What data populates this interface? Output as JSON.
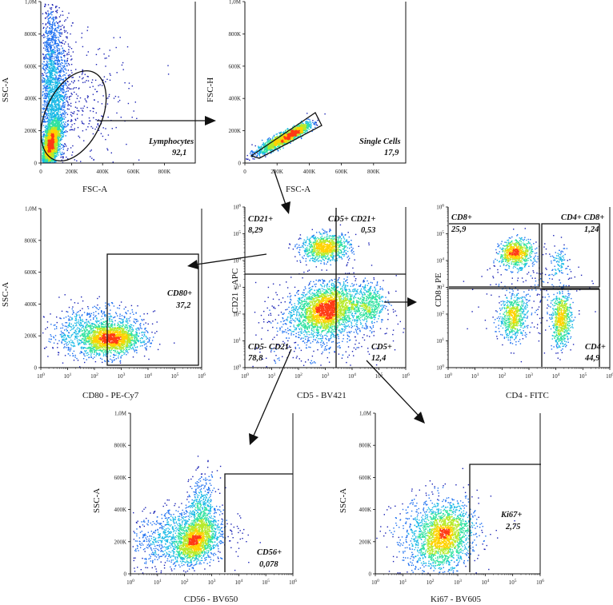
{
  "chart_data": [
    {
      "id": "p1",
      "type": "scatter",
      "xlabel": "FSC-A",
      "ylabel": "SSC-A",
      "xticks": [
        "0",
        "200K",
        "400K",
        "600K",
        "800K"
      ],
      "yticks": [
        "0",
        "200K",
        "400K",
        "600K",
        "800K",
        "1,0M"
      ],
      "xscale": "linear",
      "yscale": "linear",
      "xlim": [
        0,
        1000000
      ],
      "ylim": [
        0,
        1000000
      ],
      "populations": [
        {
          "x": 60000,
          "y": 110000,
          "sx": 30000,
          "sy": 80000,
          "n": 2600,
          "corr": 0.6
        },
        {
          "x": 90000,
          "y": 350000,
          "sx": 45000,
          "sy": 230000,
          "n": 1400,
          "corr": 0.4
        },
        {
          "x": 55000,
          "y": 650000,
          "sx": 30000,
          "sy": 200000,
          "n": 700,
          "corr": 0.2
        },
        {
          "x": 250000,
          "y": 300000,
          "sx": 160000,
          "sy": 220000,
          "n": 350,
          "corr": 0.3
        }
      ],
      "gates": [
        {
          "name": "Lymphocytes",
          "value": "92,1",
          "shape": "ellipse"
        }
      ]
    },
    {
      "id": "p2",
      "type": "scatter",
      "xlabel": "FSC-A",
      "ylabel": "FSC-H",
      "xticks": [
        "0",
        "200K",
        "400K",
        "600K",
        "800K"
      ],
      "yticks": [
        "0",
        "200K",
        "400K",
        "600K",
        "800K",
        "1,0M"
      ],
      "xscale": "linear",
      "yscale": "linear",
      "xlim": [
        0,
        1000000
      ],
      "ylim": [
        0,
        1000000
      ],
      "populations": [
        {
          "x": 230000,
          "y": 150000,
          "sx": 80000,
          "sy": 45000,
          "n": 1500,
          "corr": 0.9
        },
        {
          "x": 320000,
          "y": 200000,
          "sx": 40000,
          "sy": 25000,
          "n": 500,
          "corr": 0.8
        }
      ],
      "gates": [
        {
          "name": "Single Cells",
          "value": "17,9",
          "shape": "polygon"
        }
      ]
    },
    {
      "id": "p3",
      "type": "scatter",
      "xlabel": "CD80 - PE-Cy7",
      "ylabel": "SSC-A",
      "xticks": [
        "10^0",
        "10^1",
        "10^2",
        "10^3",
        "10^4",
        "10^5",
        "10^6"
      ],
      "yticks": [
        "0",
        "200K",
        "400K",
        "600K",
        "800K",
        "1,0M"
      ],
      "xscale": "log",
      "yscale": "linear",
      "xlim": [
        0,
        6
      ],
      "ylim": [
        0,
        1000000
      ],
      "populations": [
        {
          "x": 2.6,
          "y": 180000,
          "sx": 0.55,
          "sy": 45000,
          "n": 1500,
          "corr": 0.1
        },
        {
          "x": 2.0,
          "y": 230000,
          "sx": 0.9,
          "sy": 80000,
          "n": 900,
          "corr": 0.1
        }
      ],
      "gates": [
        {
          "name": "CD80+",
          "value": "37,2",
          "shape": "rect"
        }
      ]
    },
    {
      "id": "p4",
      "type": "scatter",
      "xlabel": "CD5 - BV421",
      "ylabel": "CD21 - APC",
      "xticks": [
        "10^0",
        "10^1",
        "10^2",
        "10^3",
        "10^4",
        "10^5",
        "10^6"
      ],
      "yticks": [
        "10^0",
        "10^1",
        "10^2",
        "10^3",
        "10^4",
        "10^5",
        "10^6"
      ],
      "xscale": "log",
      "yscale": "log",
      "xlim": [
        0,
        6
      ],
      "ylim": [
        0,
        6
      ],
      "populations": [
        {
          "x": 3.0,
          "y": 4.5,
          "sx": 0.45,
          "sy": 0.25,
          "n": 900,
          "corr": 0.1
        },
        {
          "x": 3.0,
          "y": 2.2,
          "sx": 0.55,
          "sy": 0.45,
          "n": 2200,
          "corr": 0.2
        },
        {
          "x": 4.6,
          "y": 2.4,
          "sx": 0.3,
          "sy": 0.4,
          "n": 500,
          "corr": 0.1
        },
        {
          "x": 2.8,
          "y": 1.6,
          "sx": 1.2,
          "sy": 0.8,
          "n": 700,
          "corr": 0.1
        }
      ],
      "gates": [
        {
          "name": "CD21+",
          "value": "8,29",
          "shape": "quadrant"
        },
        {
          "name": "CD5+ CD21+",
          "value": "0,53",
          "shape": "quadrant"
        },
        {
          "name": "CD5- CD21-",
          "value": "78,8",
          "shape": "quadrant"
        },
        {
          "name": "CD5+",
          "value": "12,4",
          "shape": "quadrant"
        }
      ]
    },
    {
      "id": "p5",
      "type": "scatter",
      "xlabel": "CD4 - FITC",
      "ylabel": "CD8 - PE",
      "xticks": [
        "10^0",
        "10^1",
        "10^2",
        "10^3",
        "10^4",
        "10^5",
        "10^6"
      ],
      "yticks": [
        "10^0",
        "10^1",
        "10^2",
        "10^3",
        "10^4",
        "10^5",
        "10^6"
      ],
      "xscale": "log",
      "yscale": "log",
      "xlim": [
        0,
        6
      ],
      "ylim": [
        0,
        6
      ],
      "populations": [
        {
          "x": 2.5,
          "y": 4.3,
          "sx": 0.3,
          "sy": 0.25,
          "n": 700,
          "corr": 0.1
        },
        {
          "x": 2.4,
          "y": 1.9,
          "sx": 0.25,
          "sy": 0.4,
          "n": 600,
          "corr": 0.1
        },
        {
          "x": 4.2,
          "y": 1.8,
          "sx": 0.18,
          "sy": 0.5,
          "n": 700,
          "corr": 0.1
        },
        {
          "x": 4.1,
          "y": 4.0,
          "sx": 0.15,
          "sy": 0.25,
          "n": 80,
          "corr": 0.1
        },
        {
          "x": 3.0,
          "y": 3.0,
          "sx": 0.9,
          "sy": 1.0,
          "n": 250,
          "corr": 0.1
        }
      ],
      "gates": [
        {
          "name": "CD8+",
          "value": "25,9",
          "shape": "quadrant"
        },
        {
          "name": "CD4+ CD8+",
          "value": "1,24",
          "shape": "quadrant"
        },
        {
          "name": "CD4+",
          "value": "44,9",
          "shape": "quadrant"
        }
      ]
    },
    {
      "id": "p6",
      "type": "scatter",
      "xlabel": "CD56 - BV650",
      "ylabel": "SSC-A",
      "xticks": [
        "10^0",
        "10^1",
        "10^2",
        "10^3",
        "10^4",
        "10^5",
        "10^6"
      ],
      "yticks": [
        "0",
        "200K",
        "400K",
        "600K",
        "800K",
        "1,0M"
      ],
      "xscale": "log",
      "yscale": "linear",
      "xlim": [
        0,
        6
      ],
      "ylim": [
        0,
        1000000
      ],
      "populations": [
        {
          "x": 2.4,
          "y": 210000,
          "sx": 0.35,
          "sy": 70000,
          "n": 1300,
          "corr": 0.3
        },
        {
          "x": 1.8,
          "y": 230000,
          "sx": 0.9,
          "sy": 100000,
          "n": 1100,
          "corr": 0.2
        },
        {
          "x": 2.6,
          "y": 420000,
          "sx": 0.3,
          "sy": 100000,
          "n": 400,
          "corr": 0.2
        }
      ],
      "gates": [
        {
          "name": "CD56+",
          "value": "0,078",
          "shape": "rect"
        }
      ]
    },
    {
      "id": "p7",
      "type": "scatter",
      "xlabel": "Ki67 - BV605",
      "ylabel": "SSC-A",
      "xticks": [
        "10^0",
        "10^1",
        "10^2",
        "10^3",
        "10^4",
        "10^5",
        "10^6"
      ],
      "yticks": [
        "0",
        "200K",
        "400K",
        "600K",
        "800K",
        "1,0M"
      ],
      "xscale": "log",
      "yscale": "linear",
      "xlim": [
        0,
        6
      ],
      "ylim": [
        0,
        1000000
      ],
      "populations": [
        {
          "x": 2.5,
          "y": 230000,
          "sx": 0.45,
          "sy": 90000,
          "n": 1300,
          "corr": 0.2
        },
        {
          "x": 2.2,
          "y": 250000,
          "sx": 0.8,
          "sy": 120000,
          "n": 900,
          "corr": 0.1
        }
      ],
      "gates": [
        {
          "name": "Ki67+",
          "value": "2,75",
          "shape": "rect"
        }
      ]
    }
  ]
}
